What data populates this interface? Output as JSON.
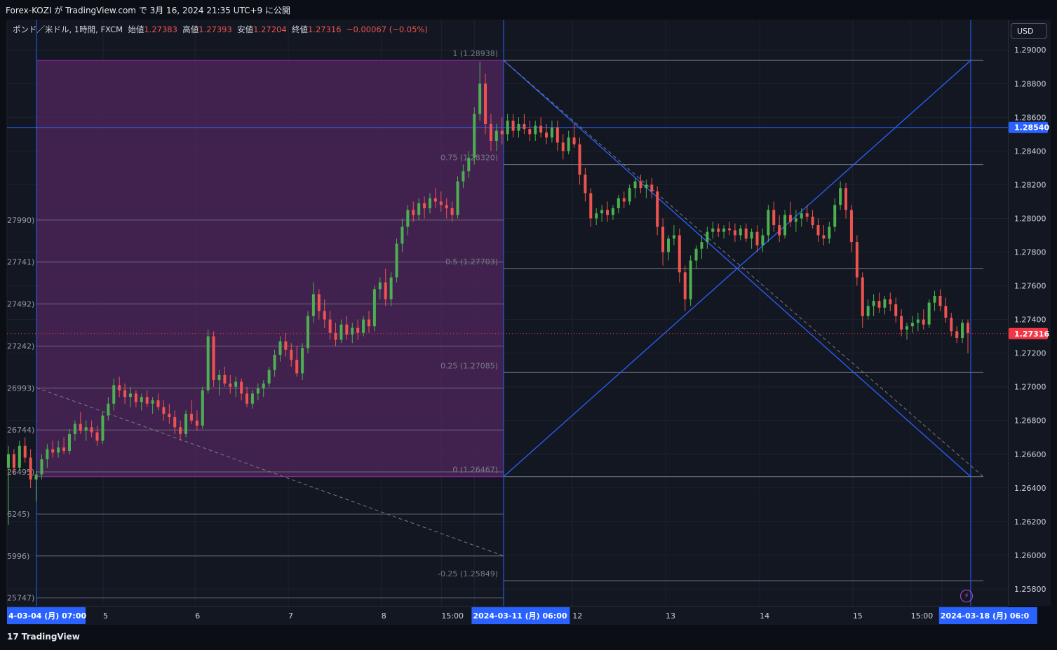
{
  "header": {
    "published_text": "Forex-KOZI が TradingView.com で 3月 16, 2024 21:35 UTC+9 に公開"
  },
  "legend": {
    "symbol": "ポンド／米ドル, 1時間, FXCM",
    "open_label": "始値",
    "open": "1.27383",
    "high_label": "高値",
    "high": "1.27393",
    "low_label": "安値",
    "low": "1.27204",
    "close_label": "終値",
    "close": "1.27316",
    "change": "−0.00067 (−0.05%)"
  },
  "currency_button": "USD",
  "footer": {
    "brand": "TradingView",
    "logo_glyph": "17"
  },
  "colors": {
    "background": "#131722",
    "up": "#26a69a",
    "down": "#ef5350",
    "candle_up": "#4caf50",
    "fib_zone": "#4a2457",
    "fib_zone_border": "#9c27b0",
    "line_blue": "#2962ff",
    "last_price_bg": "#f23645",
    "crosshair_price_bg": "#2962ff"
  },
  "chart_data": {
    "type": "candlestick",
    "title": "ポンド／米ドル, 1時間, FXCM",
    "y_range": [
      1.257,
      1.2918
    ],
    "y_ticks": [
      "1.29000",
      "1.28800",
      "1.28600",
      "1.28400",
      "1.28200",
      "1.28000",
      "1.27800",
      "1.27600",
      "1.27400",
      "1.27200",
      "1.27000",
      "1.26800",
      "1.26600",
      "1.26400",
      "1.26200",
      "1.26000",
      "1.25800"
    ],
    "x_labels": [
      {
        "text": "4-03-04 (月)  07:00",
        "x": 0.0
      },
      {
        "text": "5",
        "x": 0.096
      },
      {
        "text": "6",
        "x": 0.188
      },
      {
        "text": "7",
        "x": 0.281
      },
      {
        "text": "8",
        "x": 0.374
      },
      {
        "text": "15:00",
        "x": 0.434
      },
      {
        "text": "2024-03-11 (月)  06:00",
        "x": 0.467
      },
      {
        "text": "12",
        "x": 0.565
      },
      {
        "text": "13",
        "x": 0.658
      },
      {
        "text": "14",
        "x": 0.752
      },
      {
        "text": "15",
        "x": 0.845
      },
      {
        "text": "15:00",
        "x": 0.903
      },
      {
        "text": "2024-03-18 (月)  06:0",
        "x": 0.934
      }
    ],
    "fib_left_labels": [
      "27990)",
      "27741)",
      "27492)",
      "27242)",
      "26993)",
      "26744)",
      "26495)",
      "6245)",
      "5996)",
      "25747)"
    ],
    "fib_left_levels": [
      1.2799,
      1.27741,
      1.27492,
      1.27242,
      1.26993,
      1.26744,
      1.26495,
      1.26245,
      1.25996,
      1.25747
    ],
    "fib_right": [
      {
        "label": "1 (1.28938)",
        "level": 1.28938
      },
      {
        "label": "0.75 (1.28320)",
        "level": 1.2832
      },
      {
        "label": "0.5 (1.27703)",
        "level": 1.27703
      },
      {
        "label": "0.25 (1.27085)",
        "level": 1.27085
      },
      {
        "label": "0 (1.26467)",
        "level": 1.26467
      },
      {
        "label": "-0.25 (1.25849)",
        "level": 1.25849
      }
    ],
    "horizontal_line": {
      "label": "1.28540",
      "level": 1.2854
    },
    "last_price": {
      "label": "1.27316",
      "level": 1.27316
    },
    "points": [
      [
        1.2652,
        1.2665,
        1.2618,
        1.266
      ],
      [
        1.266,
        1.2663,
        1.2648,
        1.2652
      ],
      [
        1.2652,
        1.2668,
        1.265,
        1.2665
      ],
      [
        1.2665,
        1.267,
        1.2655,
        1.2658
      ],
      [
        1.2658,
        1.2663,
        1.264,
        1.2645
      ],
      [
        1.2645,
        1.265,
        1.2632,
        1.2648
      ],
      [
        1.2648,
        1.266,
        1.2645,
        1.2657
      ],
      [
        1.2657,
        1.2666,
        1.2652,
        1.2663
      ],
      [
        1.2663,
        1.2668,
        1.2658,
        1.2661
      ],
      [
        1.2661,
        1.2668,
        1.2658,
        1.2664
      ],
      [
        1.2664,
        1.267,
        1.266,
        1.2662
      ],
      [
        1.2662,
        1.2675,
        1.266,
        1.2672
      ],
      [
        1.2672,
        1.268,
        1.2668,
        1.2678
      ],
      [
        1.2678,
        1.2685,
        1.2672,
        1.2674
      ],
      [
        1.2674,
        1.268,
        1.2668,
        1.2676
      ],
      [
        1.2676,
        1.268,
        1.267,
        1.2673
      ],
      [
        1.2673,
        1.2677,
        1.2665,
        1.2668
      ],
      [
        1.2668,
        1.2685,
        1.2666,
        1.2683
      ],
      [
        1.2683,
        1.2694,
        1.268,
        1.269
      ],
      [
        1.269,
        1.2705,
        1.2686,
        1.2701
      ],
      [
        1.2701,
        1.2706,
        1.2694,
        1.2698
      ],
      [
        1.2698,
        1.2702,
        1.269,
        1.2694
      ],
      [
        1.2694,
        1.27,
        1.2688,
        1.2696
      ],
      [
        1.2696,
        1.2698,
        1.2688,
        1.2691
      ],
      [
        1.2691,
        1.2696,
        1.2686,
        1.2694
      ],
      [
        1.2694,
        1.2698,
        1.2688,
        1.269
      ],
      [
        1.269,
        1.2694,
        1.2684,
        1.2692
      ],
      [
        1.2692,
        1.2696,
        1.2686,
        1.2688
      ],
      [
        1.2688,
        1.2692,
        1.268,
        1.2684
      ],
      [
        1.2684,
        1.269,
        1.2678,
        1.2682
      ],
      [
        1.2682,
        1.2686,
        1.2672,
        1.2676
      ],
      [
        1.2676,
        1.268,
        1.2668,
        1.2672
      ],
      [
        1.2672,
        1.2686,
        1.267,
        1.2684
      ],
      [
        1.2684,
        1.2692,
        1.2678,
        1.268
      ],
      [
        1.268,
        1.2686,
        1.2674,
        1.2677
      ],
      [
        1.2677,
        1.27,
        1.2675,
        1.2698
      ],
      [
        1.2698,
        1.2734,
        1.2696,
        1.273
      ],
      [
        1.273,
        1.2733,
        1.27,
        1.2704
      ],
      [
        1.2704,
        1.271,
        1.2695,
        1.2707
      ],
      [
        1.2707,
        1.2712,
        1.27,
        1.2702
      ],
      [
        1.2702,
        1.2707,
        1.2696,
        1.27
      ],
      [
        1.27,
        1.2706,
        1.2694,
        1.2703
      ],
      [
        1.2703,
        1.2705,
        1.2692,
        1.2696
      ],
      [
        1.2696,
        1.27,
        1.2688,
        1.269
      ],
      [
        1.269,
        1.2698,
        1.2687,
        1.2696
      ],
      [
        1.2696,
        1.2702,
        1.2692,
        1.2699
      ],
      [
        1.2699,
        1.2704,
        1.2694,
        1.2702
      ],
      [
        1.2702,
        1.2712,
        1.27,
        1.271
      ],
      [
        1.271,
        1.2722,
        1.2706,
        1.2719
      ],
      [
        1.2719,
        1.273,
        1.2715,
        1.2727
      ],
      [
        1.2727,
        1.2732,
        1.2718,
        1.2722
      ],
      [
        1.2722,
        1.2726,
        1.2712,
        1.2716
      ],
      [
        1.2716,
        1.2724,
        1.2706,
        1.2708
      ],
      [
        1.2708,
        1.2726,
        1.2704,
        1.2723
      ],
      [
        1.2723,
        1.2745,
        1.272,
        1.2742
      ],
      [
        1.2742,
        1.2762,
        1.2738,
        1.2755
      ],
      [
        1.2755,
        1.2758,
        1.274,
        1.2745
      ],
      [
        1.2745,
        1.2752,
        1.2735,
        1.274
      ],
      [
        1.274,
        1.2745,
        1.2728,
        1.2732
      ],
      [
        1.2732,
        1.2738,
        1.2724,
        1.2728
      ],
      [
        1.2728,
        1.274,
        1.2726,
        1.2737
      ],
      [
        1.2737,
        1.2742,
        1.2728,
        1.2731
      ],
      [
        1.2731,
        1.2738,
        1.2726,
        1.2735
      ],
      [
        1.2735,
        1.274,
        1.2728,
        1.2732
      ],
      [
        1.2732,
        1.2742,
        1.273,
        1.274
      ],
      [
        1.274,
        1.2745,
        1.2732,
        1.2736
      ],
      [
        1.2736,
        1.276,
        1.2733,
        1.2758
      ],
      [
        1.2758,
        1.2765,
        1.2752,
        1.2762
      ],
      [
        1.2762,
        1.277,
        1.2748,
        1.2752
      ],
      [
        1.2752,
        1.2768,
        1.2748,
        1.2765
      ],
      [
        1.2765,
        1.2788,
        1.2762,
        1.2785
      ],
      [
        1.2785,
        1.28,
        1.278,
        1.2795
      ],
      [
        1.2795,
        1.2808,
        1.279,
        1.2805
      ],
      [
        1.2805,
        1.281,
        1.2798,
        1.2802
      ],
      [
        1.2802,
        1.2812,
        1.2799,
        1.2809
      ],
      [
        1.2809,
        1.2813,
        1.28,
        1.2806
      ],
      [
        1.2806,
        1.2815,
        1.2803,
        1.2812
      ],
      [
        1.2812,
        1.2818,
        1.2806,
        1.281
      ],
      [
        1.281,
        1.2816,
        1.2804,
        1.2808
      ],
      [
        1.2808,
        1.2812,
        1.28,
        1.2806
      ],
      [
        1.2806,
        1.281,
        1.2798,
        1.2802
      ],
      [
        1.2802,
        1.2825,
        1.28,
        1.2822
      ],
      [
        1.2822,
        1.2832,
        1.2818,
        1.2828
      ],
      [
        1.2828,
        1.284,
        1.2824,
        1.2836
      ],
      [
        1.2836,
        1.2866,
        1.2832,
        1.2862
      ],
      [
        1.2862,
        1.2893,
        1.2858,
        1.288
      ],
      [
        1.288,
        1.2886,
        1.285,
        1.2856
      ],
      [
        1.2856,
        1.2862,
        1.284,
        1.2846
      ],
      [
        1.2846,
        1.2856,
        1.284,
        1.2852
      ],
      [
        1.2852,
        1.286,
        1.2844,
        1.285
      ],
      [
        1.285,
        1.2862,
        1.2846,
        1.2858
      ],
      [
        1.2858,
        1.2862,
        1.2848,
        1.2852
      ],
      [
        1.2852,
        1.286,
        1.2848,
        1.2856
      ],
      [
        1.2856,
        1.2862,
        1.285,
        1.2853
      ],
      [
        1.2853,
        1.2858,
        1.2846,
        1.285
      ],
      [
        1.285,
        1.2858,
        1.2846,
        1.2855
      ],
      [
        1.2855,
        1.286,
        1.2848,
        1.2851
      ],
      [
        1.2851,
        1.2856,
        1.2844,
        1.2848
      ],
      [
        1.2848,
        1.2858,
        1.2845,
        1.2854
      ],
      [
        1.2854,
        1.2858,
        1.284,
        1.2845
      ],
      [
        1.2845,
        1.285,
        1.2835,
        1.284
      ],
      [
        1.284,
        1.2852,
        1.2838,
        1.2848
      ],
      [
        1.2848,
        1.2856,
        1.2842,
        1.2844
      ],
      [
        1.2844,
        1.2848,
        1.282,
        1.2826
      ],
      [
        1.2826,
        1.283,
        1.281,
        1.2815
      ],
      [
        1.2815,
        1.2818,
        1.2795,
        1.28
      ],
      [
        1.28,
        1.2806,
        1.2796,
        1.2803
      ],
      [
        1.2803,
        1.2808,
        1.2798,
        1.2805
      ],
      [
        1.2805,
        1.281,
        1.2798,
        1.2802
      ],
      [
        1.2802,
        1.2808,
        1.2799,
        1.2806
      ],
      [
        1.2806,
        1.2814,
        1.2803,
        1.2812
      ],
      [
        1.2812,
        1.2816,
        1.2806,
        1.281
      ],
      [
        1.281,
        1.282,
        1.2808,
        1.2818
      ],
      [
        1.2818,
        1.2824,
        1.2812,
        1.2822
      ],
      [
        1.2822,
        1.2826,
        1.2815,
        1.2818
      ],
      [
        1.2818,
        1.2823,
        1.2812,
        1.282
      ],
      [
        1.282,
        1.2824,
        1.2812,
        1.2816
      ],
      [
        1.2816,
        1.2819,
        1.279,
        1.2795
      ],
      [
        1.2795,
        1.28,
        1.2772,
        1.278
      ],
      [
        1.278,
        1.279,
        1.2775,
        1.2788
      ],
      [
        1.2788,
        1.2796,
        1.2784,
        1.279
      ],
      [
        1.279,
        1.2794,
        1.2762,
        1.2768
      ],
      [
        1.2768,
        1.2772,
        1.2745,
        1.2752
      ],
      [
        1.2752,
        1.2778,
        1.2748,
        1.2775
      ],
      [
        1.2775,
        1.2784,
        1.277,
        1.2782
      ],
      [
        1.2782,
        1.279,
        1.2776,
        1.2786
      ],
      [
        1.2786,
        1.2795,
        1.2782,
        1.2792
      ],
      [
        1.2792,
        1.2798,
        1.2788,
        1.2794
      ],
      [
        1.2794,
        1.2797,
        1.2789,
        1.2792
      ],
      [
        1.2792,
        1.2796,
        1.2788,
        1.2794
      ],
      [
        1.2794,
        1.2798,
        1.279,
        1.2793
      ],
      [
        1.2793,
        1.2797,
        1.2786,
        1.279
      ],
      [
        1.279,
        1.2796,
        1.2787,
        1.2794
      ],
      [
        1.2794,
        1.2797,
        1.2786,
        1.2788
      ],
      [
        1.2788,
        1.2794,
        1.2782,
        1.2792
      ],
      [
        1.2792,
        1.2796,
        1.278,
        1.2784
      ],
      [
        1.2784,
        1.2794,
        1.278,
        1.279
      ],
      [
        1.279,
        1.2808,
        1.2786,
        1.2805
      ],
      [
        1.2805,
        1.281,
        1.2792,
        1.2796
      ],
      [
        1.2796,
        1.2802,
        1.2786,
        1.279
      ],
      [
        1.279,
        1.2805,
        1.2788,
        1.2802
      ],
      [
        1.2802,
        1.281,
        1.2795,
        1.2798
      ],
      [
        1.2798,
        1.2805,
        1.2792,
        1.28
      ],
      [
        1.28,
        1.2806,
        1.2795,
        1.2803
      ],
      [
        1.2803,
        1.2808,
        1.2798,
        1.2801
      ],
      [
        1.2801,
        1.2805,
        1.2794,
        1.2796
      ],
      [
        1.2796,
        1.28,
        1.2786,
        1.279
      ],
      [
        1.279,
        1.2796,
        1.2784,
        1.2788
      ],
      [
        1.2788,
        1.2798,
        1.2785,
        1.2795
      ],
      [
        1.2795,
        1.2812,
        1.2792,
        1.2808
      ],
      [
        1.2808,
        1.2822,
        1.2805,
        1.2818
      ],
      [
        1.2818,
        1.2821,
        1.28,
        1.2805
      ],
      [
        1.2805,
        1.2808,
        1.278,
        1.2786
      ],
      [
        1.2786,
        1.279,
        1.276,
        1.2765
      ],
      [
        1.2765,
        1.2768,
        1.2735,
        1.2742
      ],
      [
        1.2742,
        1.2752,
        1.274,
        1.2748
      ],
      [
        1.2748,
        1.2755,
        1.2742,
        1.2751
      ],
      [
        1.2751,
        1.2756,
        1.2744,
        1.2747
      ],
      [
        1.2747,
        1.2754,
        1.2743,
        1.2752
      ],
      [
        1.2752,
        1.2756,
        1.2745,
        1.2749
      ],
      [
        1.2749,
        1.2753,
        1.2738,
        1.2742
      ],
      [
        1.2742,
        1.2746,
        1.273,
        1.2734
      ],
      [
        1.2734,
        1.2738,
        1.2728,
        1.2736
      ],
      [
        1.2736,
        1.2742,
        1.2732,
        1.2738
      ],
      [
        1.2738,
        1.2744,
        1.2733,
        1.274
      ],
      [
        1.274,
        1.2746,
        1.2734,
        1.2737
      ],
      [
        1.2737,
        1.2752,
        1.2735,
        1.275
      ],
      [
        1.275,
        1.2757,
        1.2745,
        1.2754
      ],
      [
        1.2754,
        1.2758,
        1.2745,
        1.2748
      ],
      [
        1.2748,
        1.2753,
        1.2738,
        1.2741
      ],
      [
        1.2741,
        1.2744,
        1.273,
        1.2733
      ],
      [
        1.2733,
        1.2736,
        1.2726,
        1.2729
      ],
      [
        1.2729,
        1.274,
        1.2726,
        1.2738
      ],
      [
        1.2738,
        1.274,
        1.272,
        1.2732
      ]
    ]
  }
}
